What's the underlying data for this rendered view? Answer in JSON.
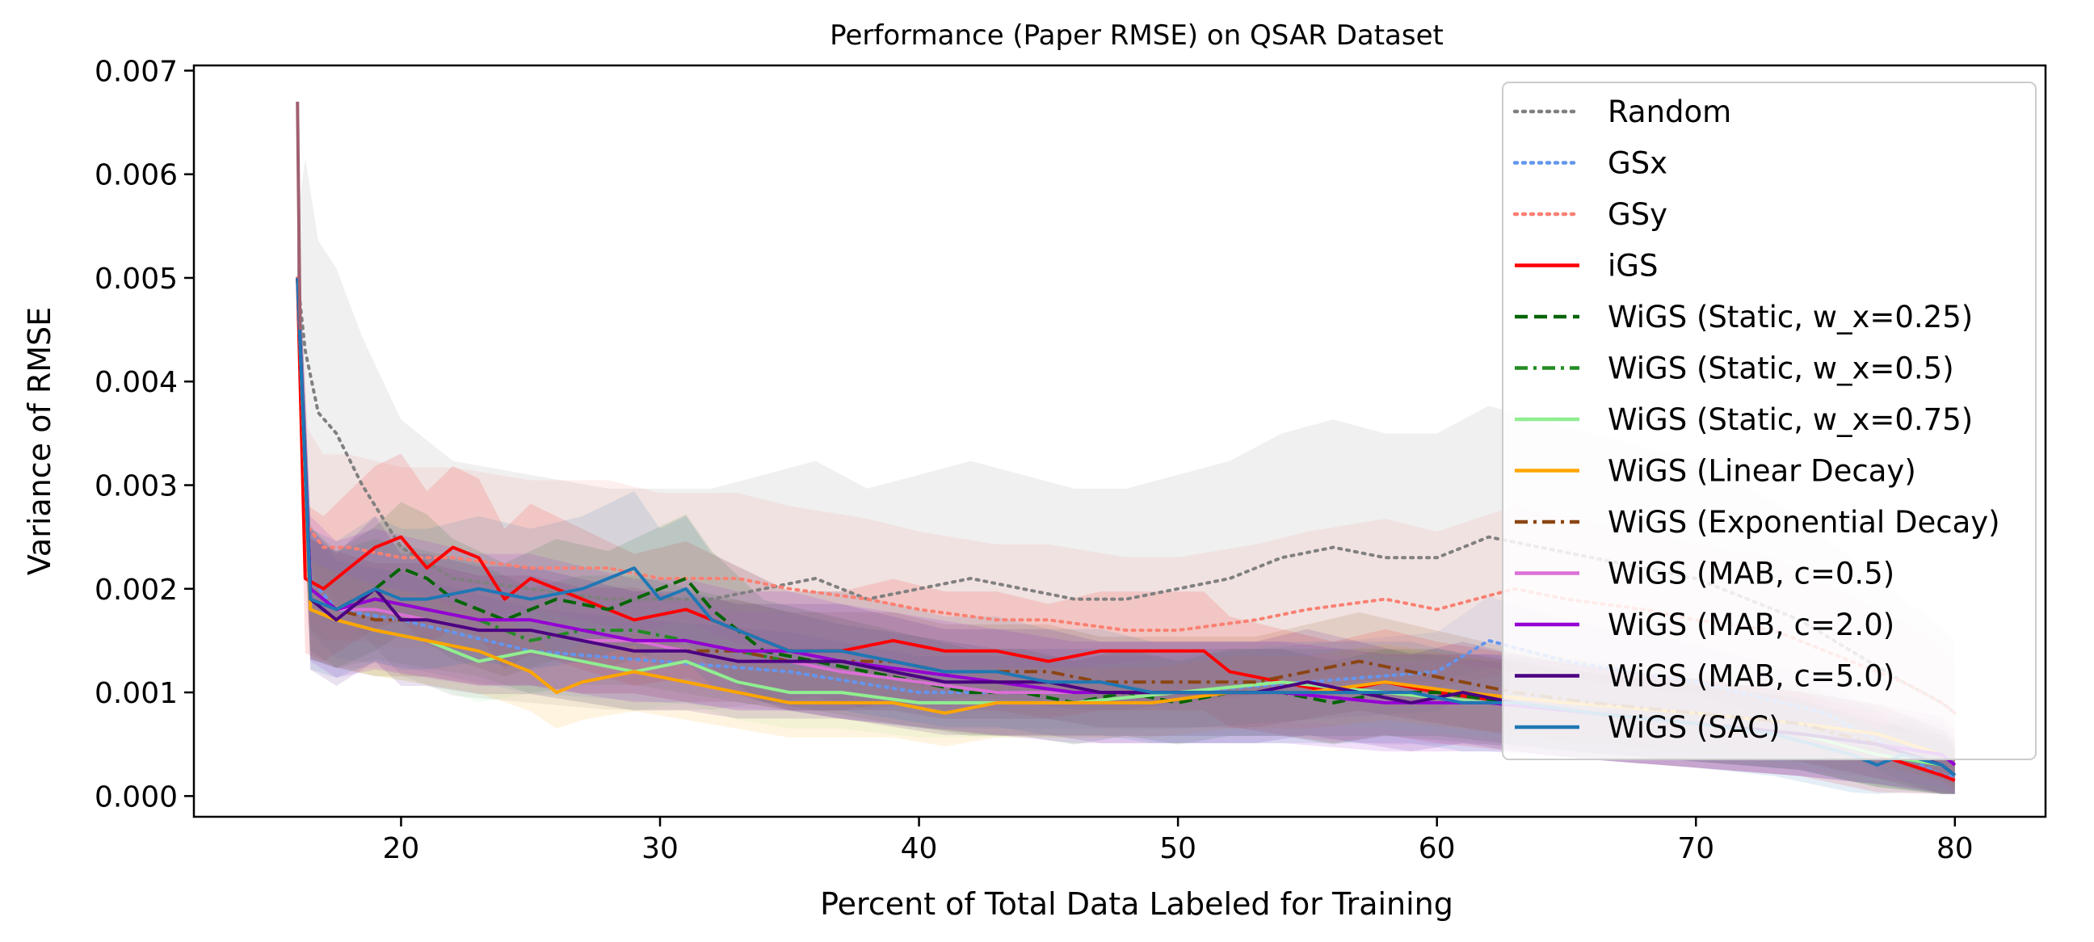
{
  "chart_data": {
    "type": "line",
    "title": "Performance (Paper RMSE) on QSAR Dataset",
    "xlabel": "Percent of Total Data Labeled for Training",
    "ylabel": "Variance of RMSE",
    "xlim": [
      12.0,
      83.5
    ],
    "ylim": [
      -0.0002,
      0.00705
    ],
    "xticks": [
      20,
      30,
      40,
      50,
      60,
      70,
      80
    ],
    "xtick_labels": [
      "20",
      "30",
      "40",
      "50",
      "60",
      "70",
      "80"
    ],
    "yticks": [
      0.0,
      0.001,
      0.002,
      0.003,
      0.004,
      0.005,
      0.006,
      0.007
    ],
    "ytick_labels": [
      "0.000",
      "0.001",
      "0.002",
      "0.003",
      "0.004",
      "0.005",
      "0.006",
      "0.007"
    ],
    "grid": false,
    "legend_position": "top-right",
    "series": [
      {
        "name": "Random",
        "color": "#808080",
        "style": "dotted",
        "band": 0.0011,
        "x": [
          16,
          16.3,
          16.8,
          17.5,
          18.5,
          20,
          22,
          25,
          28,
          30,
          32,
          34,
          36,
          38,
          40,
          42,
          44,
          46,
          48,
          50,
          52,
          54,
          56,
          58,
          60,
          62,
          64,
          66,
          68,
          70,
          72,
          74,
          76,
          78,
          79.5,
          80
        ],
        "y": [
          0.005,
          0.0043,
          0.0037,
          0.0035,
          0.003,
          0.0024,
          0.0021,
          0.002,
          0.0019,
          0.0019,
          0.0019,
          0.002,
          0.0021,
          0.0019,
          0.002,
          0.0021,
          0.002,
          0.0019,
          0.0019,
          0.002,
          0.0021,
          0.0023,
          0.0024,
          0.0023,
          0.0023,
          0.0025,
          0.0024,
          0.0023,
          0.0022,
          0.0021,
          0.0019,
          0.0017,
          0.0014,
          0.0011,
          0.0009,
          0.0008
        ]
      },
      {
        "name": "GSx",
        "color": "#6495ed",
        "style": "dotted",
        "band": 0.0005,
        "x": [
          16,
          16.5,
          17.5,
          20,
          25,
          30,
          35,
          40,
          45,
          50,
          55,
          60,
          62,
          65,
          70,
          75,
          78,
          79.5,
          80
        ],
        "y": [
          0.005,
          0.0021,
          0.0018,
          0.0017,
          0.0014,
          0.0013,
          0.0012,
          0.001,
          0.001,
          0.001,
          0.0011,
          0.0012,
          0.0015,
          0.0013,
          0.0011,
          0.0008,
          0.0004,
          0.0002,
          0.0002
        ]
      },
      {
        "name": "GSy",
        "color": "#fa8072",
        "style": "dotted",
        "band": 0.0008,
        "x": [
          16,
          16.4,
          17,
          18,
          20,
          22,
          25,
          28,
          30,
          33,
          35,
          38,
          40,
          43,
          45,
          48,
          50,
          53,
          55,
          58,
          60,
          63,
          65,
          68,
          70,
          73,
          75,
          78,
          79.5,
          80
        ],
        "y": [
          0.005,
          0.0026,
          0.0024,
          0.0024,
          0.0023,
          0.0023,
          0.0022,
          0.0022,
          0.0021,
          0.0021,
          0.002,
          0.0019,
          0.0018,
          0.0017,
          0.0017,
          0.0016,
          0.0016,
          0.0017,
          0.0018,
          0.0019,
          0.0018,
          0.002,
          0.0019,
          0.0018,
          0.0017,
          0.0016,
          0.0014,
          0.0011,
          0.0009,
          0.0008
        ]
      },
      {
        "name": "iGS",
        "color": "#ff0000",
        "style": "solid",
        "band": 0.0007,
        "x": [
          16,
          16.3,
          17,
          18,
          19,
          20,
          21,
          22,
          23,
          24,
          25,
          27,
          29,
          31,
          33,
          35,
          37,
          39,
          41,
          43,
          45,
          47,
          49,
          51,
          52,
          54,
          56,
          58,
          60,
          63,
          66,
          70,
          74,
          77,
          79.5,
          80
        ],
        "y": [
          0.005,
          0.0021,
          0.002,
          0.0022,
          0.0024,
          0.0025,
          0.0022,
          0.0024,
          0.0023,
          0.0019,
          0.0021,
          0.0019,
          0.0017,
          0.0018,
          0.0016,
          0.0014,
          0.0014,
          0.0015,
          0.0014,
          0.0014,
          0.0013,
          0.0014,
          0.0014,
          0.0014,
          0.0012,
          0.0011,
          0.001,
          0.0011,
          0.001,
          0.0009,
          0.0008,
          0.0007,
          0.0006,
          0.0004,
          0.0002,
          0.00015
        ]
      },
      {
        "name": "WiGS (Static, w_x=0.25)",
        "color": "#006400",
        "style": "dashed",
        "band": 0.0006,
        "x": [
          16,
          16.5,
          17.5,
          19,
          20,
          21,
          22,
          24,
          26,
          28,
          30,
          31,
          32,
          34,
          36,
          38,
          40,
          42,
          44,
          46,
          48,
          50,
          52,
          54,
          56,
          58,
          60,
          63,
          66,
          70,
          74,
          77,
          79.5,
          80
        ],
        "y": [
          0.005,
          0.002,
          0.0018,
          0.002,
          0.0022,
          0.0021,
          0.0019,
          0.0017,
          0.0019,
          0.0018,
          0.002,
          0.0021,
          0.0018,
          0.0014,
          0.0013,
          0.0012,
          0.0011,
          0.001,
          0.001,
          0.0009,
          0.001,
          0.0009,
          0.001,
          0.001,
          0.0009,
          0.001,
          0.001,
          0.0009,
          0.0008,
          0.0007,
          0.0006,
          0.0004,
          0.0003,
          0.0002
        ]
      },
      {
        "name": "WiGS (Static, w_x=0.5)",
        "color": "#228b22",
        "style": "dashdot",
        "band": 0.0006,
        "x": [
          16,
          16.5,
          17.5,
          19,
          21,
          23,
          25,
          27,
          29,
          31,
          33,
          35,
          37,
          40,
          43,
          46,
          50,
          54,
          58,
          62,
          66,
          70,
          74,
          77,
          79.5,
          80
        ],
        "y": [
          0.005,
          0.0019,
          0.0018,
          0.0019,
          0.0018,
          0.0017,
          0.0015,
          0.0016,
          0.0016,
          0.0015,
          0.0014,
          0.0013,
          0.0012,
          0.0011,
          0.001,
          0.001,
          0.001,
          0.001,
          0.001,
          0.0009,
          0.0008,
          0.0007,
          0.0006,
          0.0004,
          0.0003,
          0.0002
        ]
      },
      {
        "name": "WiGS (Static, w_x=0.75)",
        "color": "#90ee90",
        "style": "solid",
        "band": 0.0005,
        "x": [
          16,
          16.5,
          17.5,
          19,
          21,
          23,
          25,
          27,
          29,
          31,
          33,
          35,
          37,
          40,
          43,
          46,
          50,
          54,
          58,
          62,
          66,
          70,
          74,
          77,
          79.5,
          80
        ],
        "y": [
          0.005,
          0.0018,
          0.0017,
          0.0016,
          0.0015,
          0.0013,
          0.0014,
          0.0013,
          0.0012,
          0.0013,
          0.0011,
          0.001,
          0.001,
          0.0009,
          0.0009,
          0.0009,
          0.001,
          0.0011,
          0.001,
          0.0009,
          0.0008,
          0.0007,
          0.0006,
          0.0004,
          0.0003,
          0.0002
        ]
      },
      {
        "name": "WiGS (Linear Decay)",
        "color": "#ffa500",
        "style": "solid",
        "band": 0.0005,
        "x": [
          16,
          16.5,
          17.5,
          19,
          21,
          23,
          24,
          25,
          26,
          27,
          29,
          31,
          33,
          35,
          37,
          39,
          41,
          43,
          45,
          47,
          49,
          52,
          55,
          58,
          61,
          65,
          70,
          74,
          77,
          79.5,
          80
        ],
        "y": [
          0.005,
          0.0018,
          0.0017,
          0.0016,
          0.0015,
          0.0014,
          0.0013,
          0.0012,
          0.001,
          0.0011,
          0.0012,
          0.0011,
          0.001,
          0.0009,
          0.0009,
          0.0009,
          0.0008,
          0.0009,
          0.0009,
          0.0009,
          0.0009,
          0.001,
          0.001,
          0.0011,
          0.001,
          0.0009,
          0.0008,
          0.0007,
          0.0006,
          0.0004,
          0.0003
        ]
      },
      {
        "name": "WiGS (Exponential Decay)",
        "color": "#8b4513",
        "style": "dashdot",
        "band": 0.0006,
        "x": [
          16,
          16.5,
          17.5,
          19,
          21,
          23,
          25,
          27,
          29,
          31,
          33,
          35,
          37,
          39,
          41,
          43,
          45,
          47,
          49,
          51,
          53,
          55,
          57,
          59,
          61,
          63,
          66,
          70,
          74,
          77,
          79.5,
          80
        ],
        "y": [
          0.005,
          0.0019,
          0.0018,
          0.0017,
          0.0017,
          0.0016,
          0.0016,
          0.0015,
          0.0015,
          0.0014,
          0.0014,
          0.0013,
          0.0013,
          0.0013,
          0.0012,
          0.0012,
          0.0012,
          0.0011,
          0.0011,
          0.0011,
          0.0011,
          0.0012,
          0.0013,
          0.0012,
          0.0011,
          0.001,
          0.0009,
          0.0008,
          0.0007,
          0.0005,
          0.0003,
          0.0002
        ]
      },
      {
        "name": "WiGS (MAB, c=0.5)",
        "color": "#da70d6",
        "style": "solid",
        "band": 0.0006,
        "x": [
          16,
          16.5,
          17.5,
          19,
          21,
          23,
          25,
          27,
          29,
          31,
          33,
          35,
          37,
          40,
          43,
          46,
          50,
          54,
          58,
          62,
          66,
          70,
          74,
          77,
          79.5,
          80
        ],
        "y": [
          0.005,
          0.0019,
          0.0018,
          0.0018,
          0.0017,
          0.0016,
          0.0016,
          0.0015,
          0.0015,
          0.0014,
          0.0013,
          0.0013,
          0.0012,
          0.0011,
          0.001,
          0.001,
          0.001,
          0.001,
          0.0009,
          0.0009,
          0.0008,
          0.0007,
          0.0006,
          0.0005,
          0.0004,
          0.0003
        ]
      },
      {
        "name": "WiGS (MAB, c=2.0)",
        "color": "#9400d3",
        "style": "solid",
        "band": 0.0007,
        "x": [
          16,
          16.5,
          17.5,
          19,
          21,
          23,
          25,
          27,
          29,
          31,
          33,
          35,
          37,
          40,
          43,
          46,
          50,
          54,
          58,
          62,
          66,
          70,
          74,
          77,
          79.5,
          80
        ],
        "y": [
          0.005,
          0.002,
          0.0018,
          0.0019,
          0.0018,
          0.0017,
          0.0017,
          0.0016,
          0.0015,
          0.0015,
          0.0014,
          0.0014,
          0.0013,
          0.0012,
          0.0011,
          0.001,
          0.001,
          0.001,
          0.0009,
          0.0009,
          0.0008,
          0.0007,
          0.0006,
          0.0005,
          0.0004,
          0.0003
        ]
      },
      {
        "name": "WiGS (MAB, c=5.0)",
        "color": "#4b0082",
        "style": "solid",
        "band": 0.0007,
        "x": [
          16,
          16.5,
          17.5,
          19,
          20,
          21,
          23,
          25,
          27,
          29,
          31,
          33,
          35,
          37,
          39,
          41,
          43,
          45,
          47,
          49,
          51,
          53,
          55,
          57,
          59,
          61,
          63,
          66,
          70,
          74,
          77,
          79.5,
          80
        ],
        "y": [
          0.005,
          0.0019,
          0.0017,
          0.002,
          0.0017,
          0.0017,
          0.0016,
          0.0016,
          0.0015,
          0.0014,
          0.0014,
          0.0013,
          0.0013,
          0.0013,
          0.0012,
          0.0011,
          0.0011,
          0.0011,
          0.001,
          0.001,
          0.001,
          0.001,
          0.0011,
          0.001,
          0.0009,
          0.001,
          0.0009,
          0.0008,
          0.0007,
          0.0006,
          0.0005,
          0.0003,
          0.0002
        ]
      },
      {
        "name": "WiGS (SAC)",
        "color": "#1f77b4",
        "style": "solid",
        "band": 0.0007,
        "x": [
          16,
          16.5,
          17.5,
          19,
          20,
          21,
          23,
          25,
          27,
          28,
          29,
          30,
          31,
          32,
          33,
          35,
          37,
          39,
          41,
          43,
          45,
          47,
          49,
          51,
          53,
          55,
          57,
          59,
          61,
          63,
          66,
          70,
          73,
          76,
          77,
          78,
          79.5,
          80
        ],
        "y": [
          0.005,
          0.0019,
          0.0018,
          0.002,
          0.0019,
          0.0019,
          0.002,
          0.0019,
          0.002,
          0.0021,
          0.0022,
          0.0019,
          0.002,
          0.0017,
          0.0016,
          0.0014,
          0.0014,
          0.0013,
          0.0012,
          0.0012,
          0.0011,
          0.0011,
          0.001,
          0.001,
          0.001,
          0.001,
          0.001,
          0.001,
          0.0009,
          0.0009,
          0.0008,
          0.0007,
          0.0006,
          0.0004,
          0.0003,
          0.0004,
          0.0003,
          0.0002
        ]
      }
    ]
  }
}
